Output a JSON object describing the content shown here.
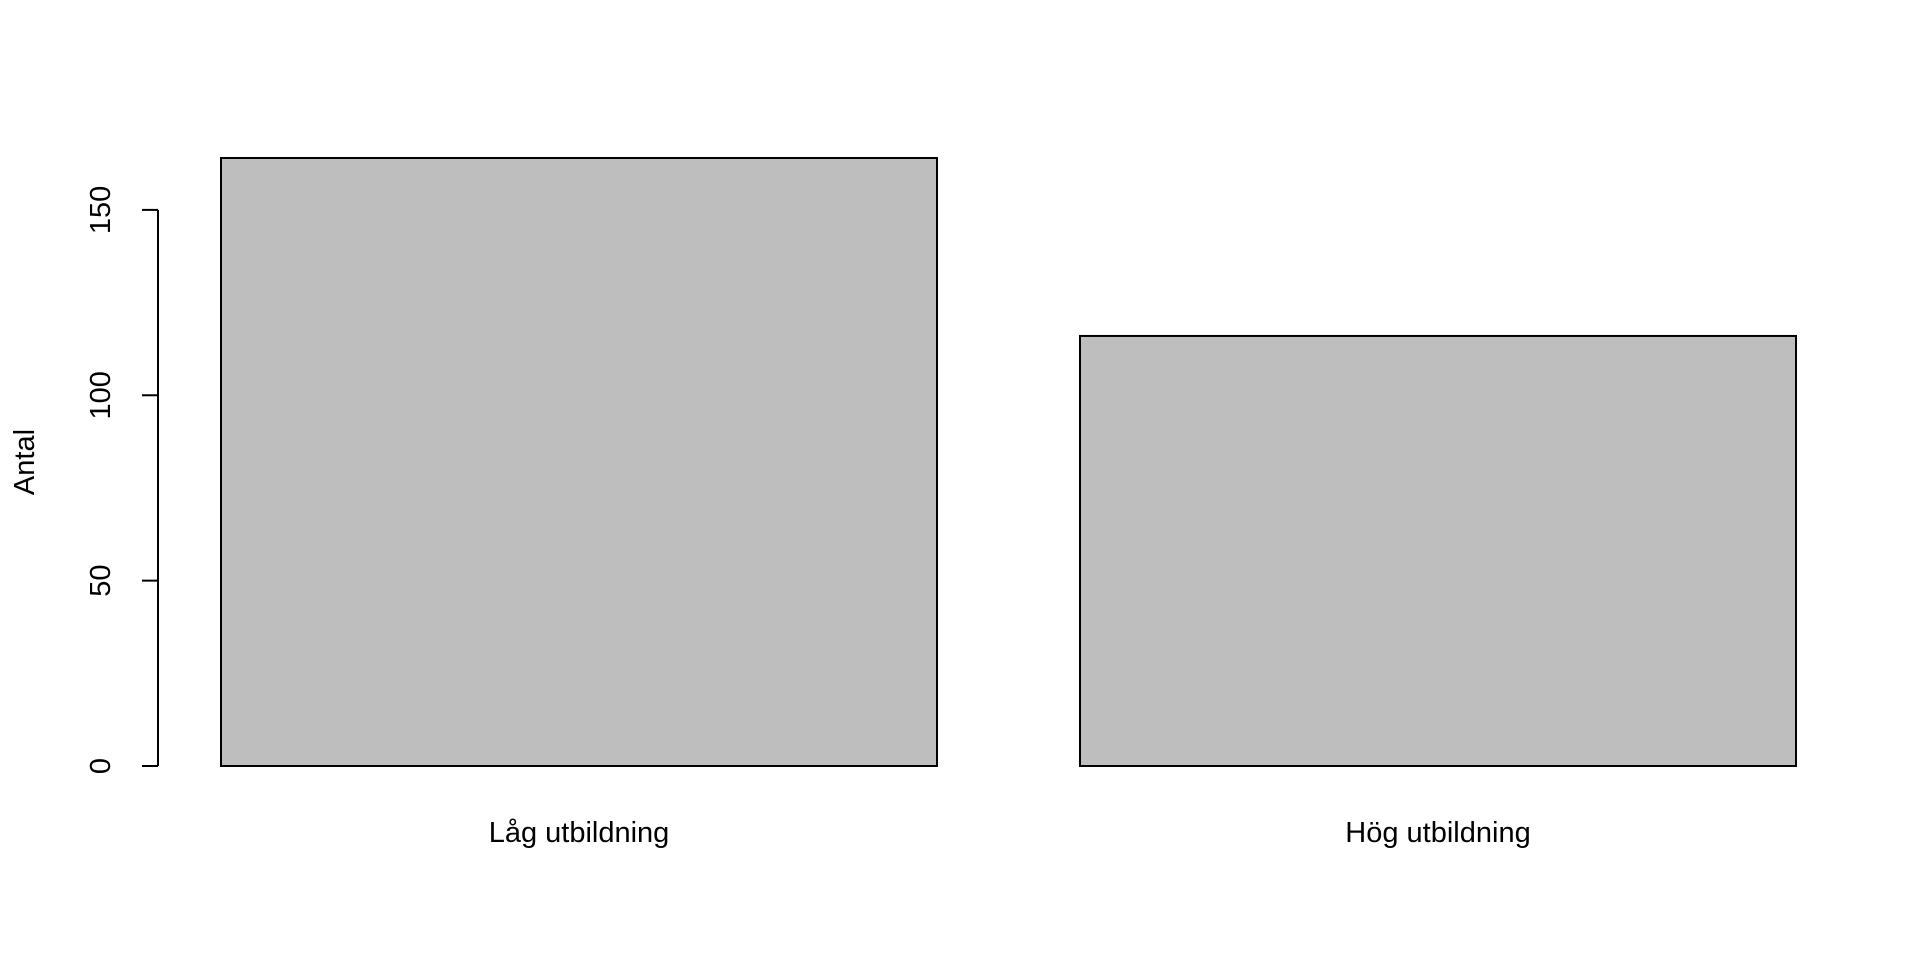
{
  "chart_data": {
    "type": "bar",
    "categories": [
      "Låg utbildning",
      "Hög utbildning"
    ],
    "values": [
      164,
      116
    ],
    "title": "",
    "xlabel": "",
    "ylabel": "Antal",
    "ylim": [
      0,
      164
    ],
    "yticks": [
      0,
      50,
      100,
      150
    ],
    "grid": false,
    "bar_fill": "#bebebe",
    "bar_stroke": "#000000"
  }
}
